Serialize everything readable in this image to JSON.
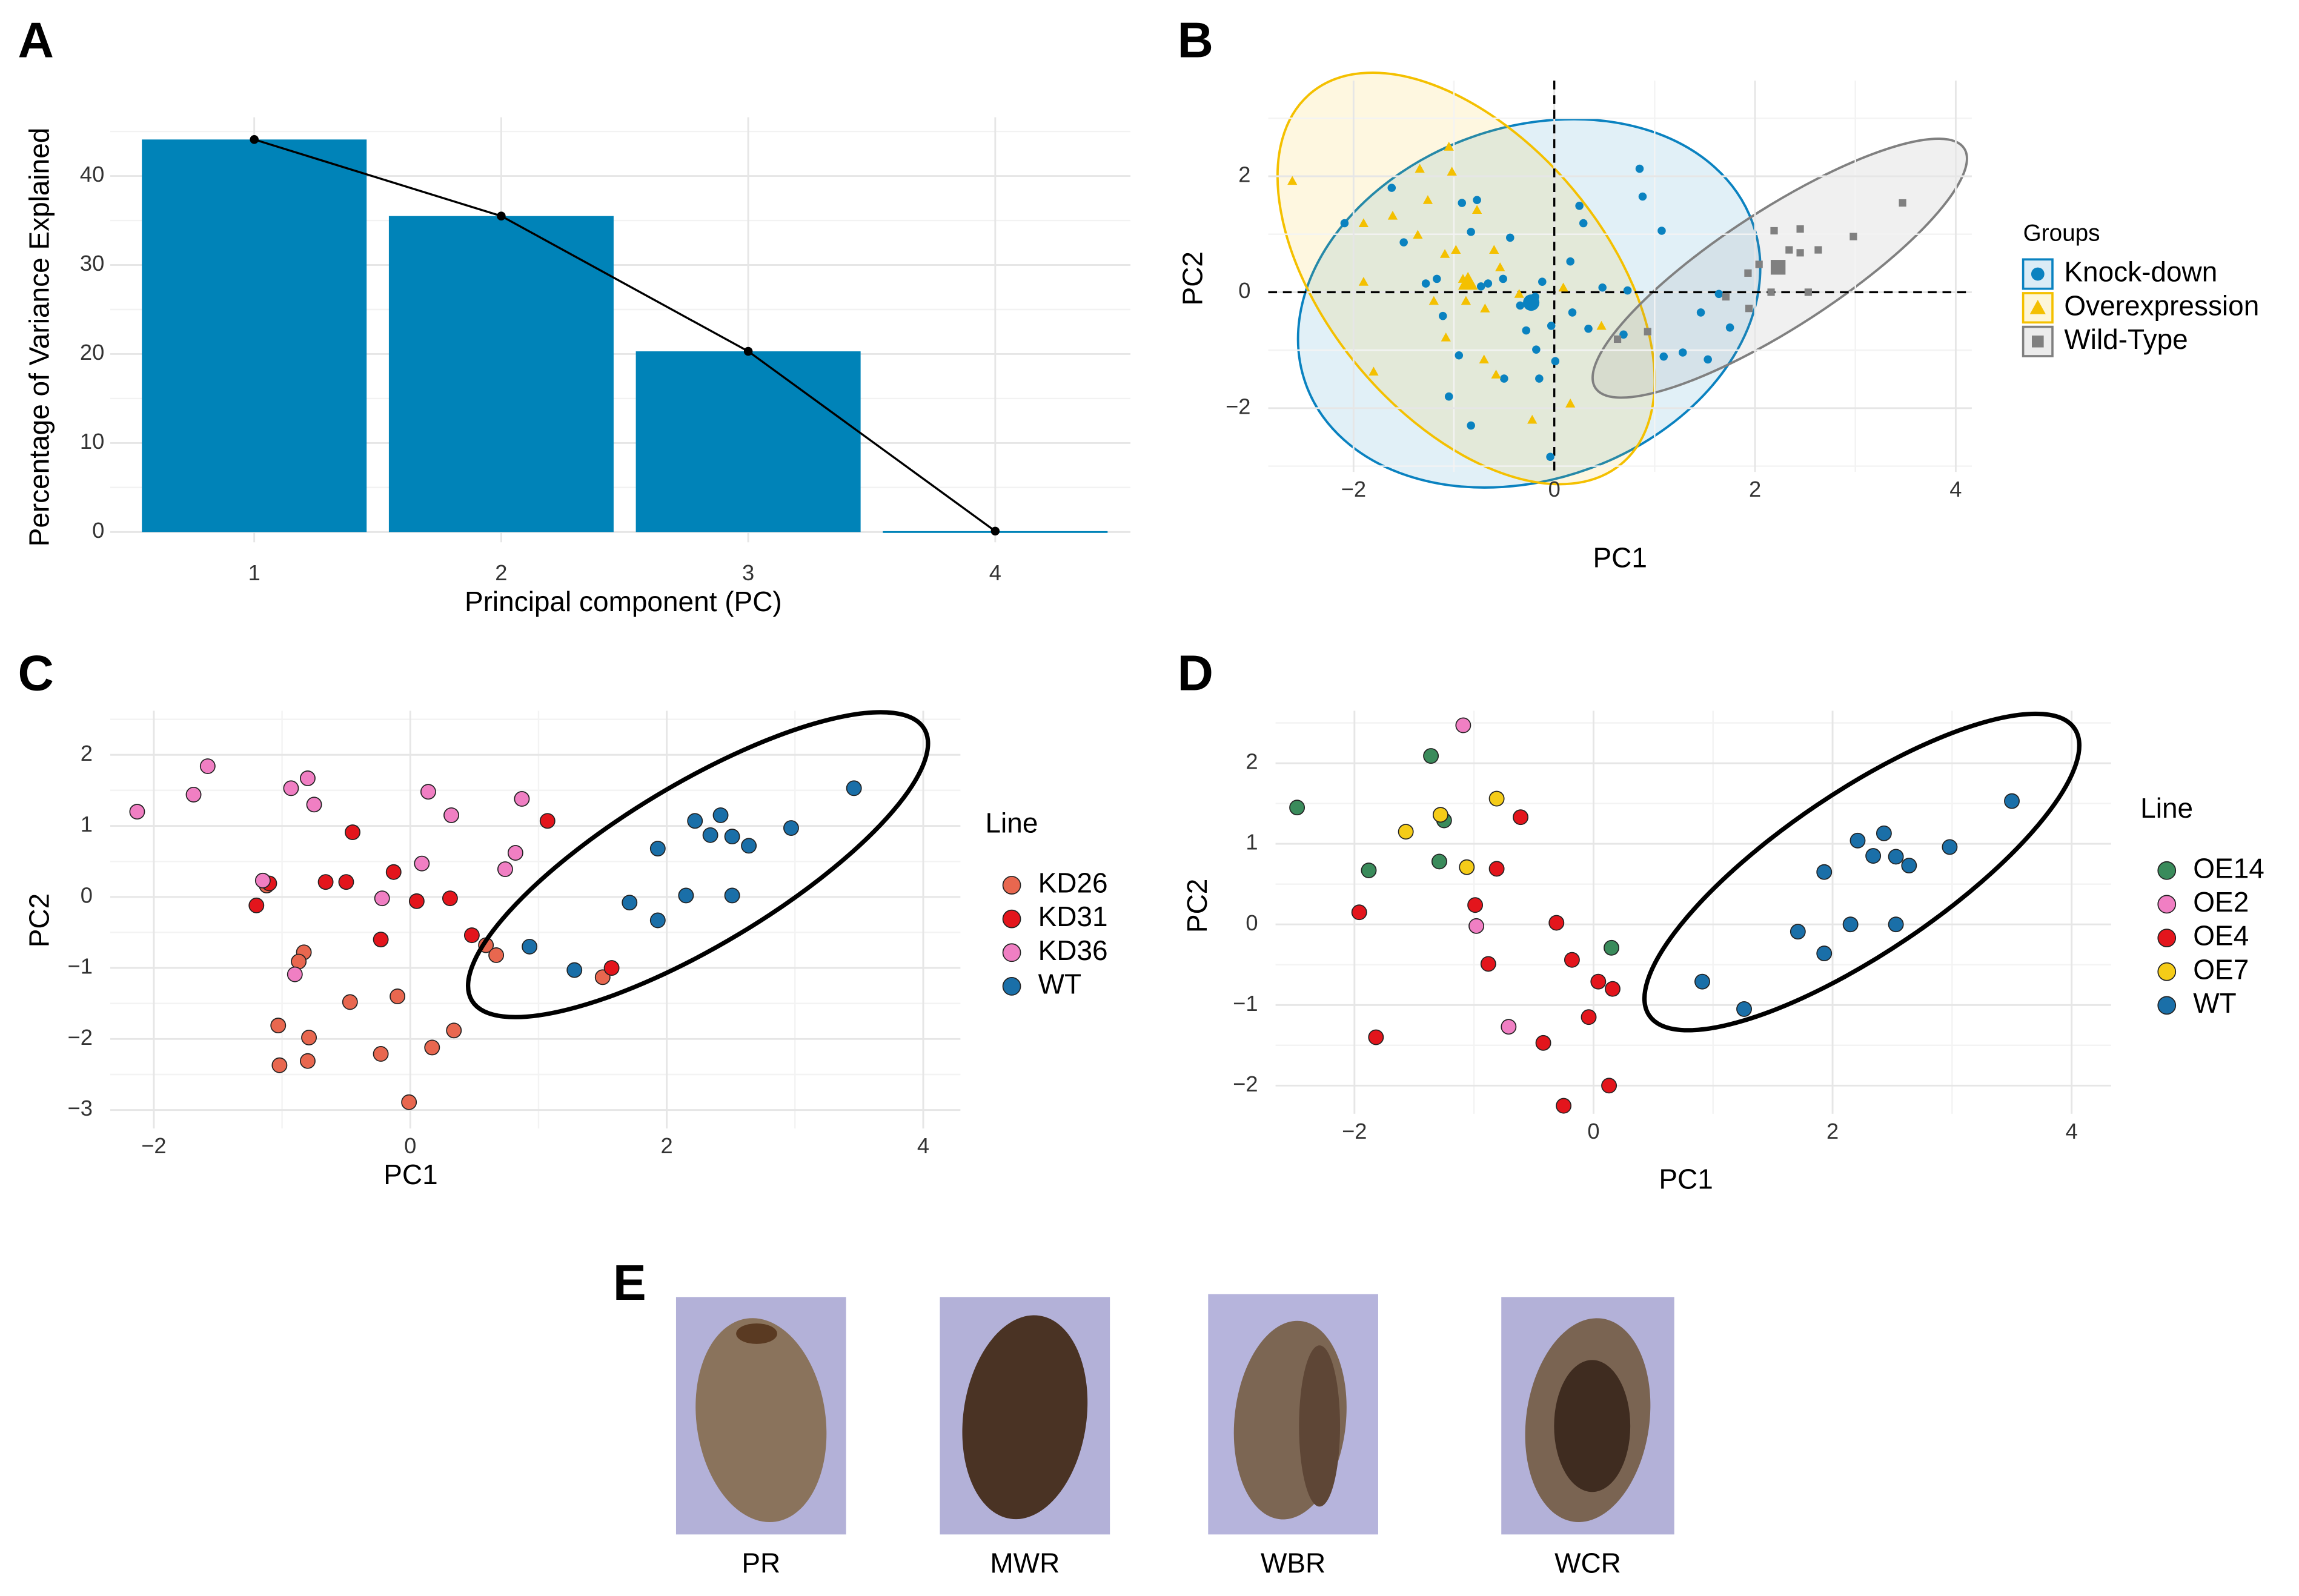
{
  "chart_data": [
    {
      "panel": "A",
      "type": "bar",
      "xlabel": "Principal component (PC)",
      "ylabel": "Percentage of Variance Explained",
      "categories": [
        "1",
        "2",
        "3",
        "4"
      ],
      "values": [
        44.1,
        35.5,
        20.3,
        0.1
      ],
      "color": "#0083b8",
      "line_color": "#000000",
      "ylim": [
        -1.15,
        46.6
      ],
      "yticks": [
        0,
        10,
        20,
        30,
        40
      ],
      "grid": true
    },
    {
      "panel": "B",
      "type": "scatter",
      "xlabel": "PC1",
      "ylabel": "PC2",
      "legend_title": "Groups",
      "xlim": [
        -2.85,
        4.16
      ],
      "ylim": [
        -3.1,
        3.65
      ],
      "xticks": [
        {
          "value": -2,
          "label": "−2"
        },
        0,
        2,
        4
      ],
      "yticks": [
        {
          "value": -2,
          "label": "−2"
        },
        0,
        2
      ],
      "grid": true,
      "reference_lines": {
        "x": 0,
        "y": 0
      },
      "series": [
        {
          "name": "Knock-down",
          "color": "#0a82c0",
          "marker": "circle",
          "x": [
            -2.09,
            -1.62,
            -1.5,
            -1.28,
            -1.17,
            -1.11,
            -0.92,
            -0.83,
            -0.77,
            -0.73,
            -0.66,
            -0.51,
            -0.44,
            -0.34,
            -0.19,
            -0.12,
            -0.28,
            -0.18,
            -0.03,
            0.01,
            0.16,
            0.18,
            0.25,
            0.29,
            0.34,
            0.48,
            0.85,
            0.88,
            1.07,
            0.73,
            -0.95,
            -1.05,
            -0.83,
            -0.5,
            -0.15,
            -0.04,
            0.69,
            1.09,
            1.28,
            1.53,
            1.46,
            1.64,
            1.75
          ],
          "y": [
            1.19,
            1.8,
            0.86,
            0.15,
            0.23,
            -0.41,
            1.54,
            1.04,
            1.59,
            0.1,
            0.15,
            0.23,
            0.94,
            -0.23,
            -0.08,
            0.18,
            -0.66,
            -0.99,
            -0.58,
            -1.19,
            0.53,
            -0.35,
            1.49,
            1.19,
            -0.63,
            0.08,
            2.13,
            1.65,
            1.06,
            0.03,
            -1.09,
            -1.8,
            -2.3,
            -1.49,
            -1.49,
            -2.84,
            -0.73,
            -1.11,
            -1.04,
            -1.16,
            -0.35,
            -0.03,
            -0.61
          ],
          "centroid": [
            -0.23,
            -0.18
          ]
        },
        {
          "name": "Overexpression",
          "color": "#f4c000",
          "marker": "triangle",
          "x": [
            -2.61,
            -1.9,
            -1.9,
            -1.61,
            -1.34,
            -1.26,
            -1.05,
            -1.02,
            -1.36,
            -1.09,
            -0.98,
            -0.91,
            -0.88,
            -0.77,
            -0.6,
            -0.69,
            -0.54,
            -0.58,
            -0.7,
            -0.35,
            -0.22,
            -1.8,
            -1.2,
            0.09,
            0.16,
            0.47,
            -1.08
          ],
          "y": [
            1.92,
            1.19,
            0.18,
            1.32,
            2.13,
            1.59,
            2.51,
            2.08,
            0.99,
            0.66,
            0.73,
            0.23,
            -0.15,
            1.42,
            0.73,
            -0.28,
            0.43,
            -1.42,
            -1.16,
            -0.03,
            -2.2,
            -1.37,
            -0.15,
            0.08,
            -1.92,
            -0.58,
            -0.78
          ],
          "centroid": [
            -0.86,
            0.18
          ]
        },
        {
          "name": "Wild-Type",
          "color": "#808080",
          "marker": "square",
          "x": [
            3.47,
            2.98,
            2.45,
            2.45,
            2.63,
            2.19,
            2.04,
            2.34,
            2.53,
            2.16,
            1.93,
            1.71,
            1.94,
            0.93,
            0.63
          ],
          "y": [
            1.54,
            0.96,
            1.09,
            0.68,
            0.73,
            1.06,
            0.48,
            0.73,
            0.0,
            0.0,
            0.33,
            -0.08,
            -0.28,
            -0.68,
            -0.81
          ],
          "centroid": [
            2.23,
            0.43
          ]
        }
      ]
    },
    {
      "panel": "C",
      "type": "scatter",
      "xlabel": "PC1",
      "ylabel": "PC2",
      "legend_title": "Line",
      "edgecolor": "#222222",
      "xlim": [
        -2.34,
        4.29
      ],
      "ylim": [
        -3.26,
        2.62
      ],
      "xticks": [
        {
          "value": -2,
          "label": "−2"
        },
        0,
        2,
        4
      ],
      "yticks": [
        {
          "value": -3,
          "label": "−3"
        },
        {
          "value": -2,
          "label": "−2"
        },
        {
          "value": -1,
          "label": "−1"
        },
        0,
        1,
        2
      ],
      "grid": true,
      "series": [
        {
          "name": "KD26",
          "color": "#e8674f",
          "marker": "circle",
          "x": [
            -1.12,
            -0.83,
            -0.87,
            -1.03,
            -0.47,
            -0.1,
            -1.02,
            -0.79,
            -0.8,
            -0.23,
            0.17,
            0.34,
            -0.01,
            0.59,
            0.67,
            1.5
          ],
          "y": [
            0.16,
            -0.78,
            -0.91,
            -1.81,
            -1.48,
            -1.4,
            -2.37,
            -1.98,
            -2.31,
            -2.21,
            -2.12,
            -1.88,
            -2.89,
            -0.68,
            -0.82,
            -1.13
          ]
        },
        {
          "name": "KD31",
          "color": "#e3151c",
          "marker": "circle",
          "x": [
            -1.2,
            -1.1,
            -0.45,
            -0.66,
            -0.5,
            -0.13,
            0.05,
            0.31,
            -0.23,
            0.48,
            1.07,
            1.57
          ],
          "y": [
            -0.12,
            0.19,
            0.91,
            0.21,
            0.21,
            0.35,
            -0.06,
            -0.02,
            -0.6,
            -0.54,
            1.07,
            -1.0
          ]
        },
        {
          "name": "KD36",
          "color": "#f07fc3",
          "marker": "circle",
          "x": [
            -2.13,
            -1.69,
            -1.58,
            -0.93,
            -0.8,
            -0.75,
            -1.15,
            -0.9,
            0.14,
            0.32,
            0.87,
            0.09,
            -0.22,
            0.82,
            0.74
          ],
          "y": [
            1.2,
            1.44,
            1.84,
            1.53,
            1.67,
            1.3,
            0.23,
            -1.09,
            1.48,
            1.15,
            1.38,
            0.47,
            -0.02,
            0.62,
            0.39
          ]
        },
        {
          "name": "WT",
          "color": "#1a6fa8",
          "marker": "circle",
          "x": [
            3.46,
            2.97,
            2.42,
            2.22,
            2.34,
            2.64,
            2.51,
            1.93,
            1.71,
            2.15,
            2.51,
            1.93,
            0.93,
            1.28
          ],
          "y": [
            1.53,
            0.97,
            1.15,
            1.07,
            0.87,
            0.72,
            0.85,
            0.68,
            -0.08,
            0.02,
            0.02,
            -0.33,
            -0.7,
            -1.03
          ]
        }
      ]
    },
    {
      "panel": "D",
      "type": "scatter",
      "xlabel": "PC1",
      "ylabel": "PC2",
      "legend_title": "Line",
      "edgecolor": "#222222",
      "xlim": [
        -2.66,
        4.33
      ],
      "ylim": [
        -2.35,
        2.65
      ],
      "xticks": [
        {
          "value": -2,
          "label": "−2"
        },
        0,
        2,
        4
      ],
      "yticks": [
        {
          "value": -2,
          "label": "−2"
        },
        {
          "value": -1,
          "label": "−1"
        },
        0,
        1,
        2
      ],
      "grid": true,
      "series": [
        {
          "name": "OE14",
          "color": "#3a8b5b",
          "marker": "circle",
          "x": [
            -2.48,
            -1.88,
            -1.36,
            -1.29,
            -1.25,
            0.15
          ],
          "y": [
            1.45,
            0.67,
            2.09,
            0.78,
            1.29,
            -0.29
          ]
        },
        {
          "name": "OE2",
          "color": "#f07fc3",
          "marker": "circle",
          "x": [
            -1.09,
            -0.98,
            -0.71
          ],
          "y": [
            2.47,
            -0.02,
            -1.27
          ]
        },
        {
          "name": "OE4",
          "color": "#e3151c",
          "marker": "circle",
          "x": [
            -1.96,
            -1.82,
            -0.99,
            -0.88,
            -0.81,
            -0.61,
            -0.31,
            -0.18,
            0.04,
            0.16,
            -0.42,
            -0.04,
            -0.25,
            0.13
          ],
          "y": [
            0.15,
            -1.4,
            0.24,
            -0.49,
            0.69,
            1.33,
            0.02,
            -0.44,
            -0.71,
            -0.8,
            -1.47,
            -1.15,
            -2.25,
            -2.0
          ]
        },
        {
          "name": "OE7",
          "color": "#f5cc18",
          "marker": "circle",
          "x": [
            -1.57,
            -1.28,
            -1.06,
            -0.81
          ],
          "y": [
            1.15,
            1.36,
            0.71,
            1.56
          ]
        },
        {
          "name": "WT",
          "color": "#1a6fa8",
          "marker": "circle",
          "x": [
            3.5,
            2.98,
            2.43,
            2.21,
            2.34,
            2.64,
            2.53,
            1.93,
            1.71,
            2.15,
            2.53,
            1.93,
            0.91,
            1.26
          ],
          "y": [
            1.53,
            0.96,
            1.13,
            1.04,
            0.85,
            0.73,
            0.84,
            0.65,
            -0.09,
            0.0,
            0.0,
            -0.36,
            -0.71,
            -1.05
          ]
        }
      ]
    }
  ],
  "panel_e": {
    "panel": "E",
    "labels": [
      "PR",
      "MWR",
      "WBR",
      "WCR"
    ]
  }
}
